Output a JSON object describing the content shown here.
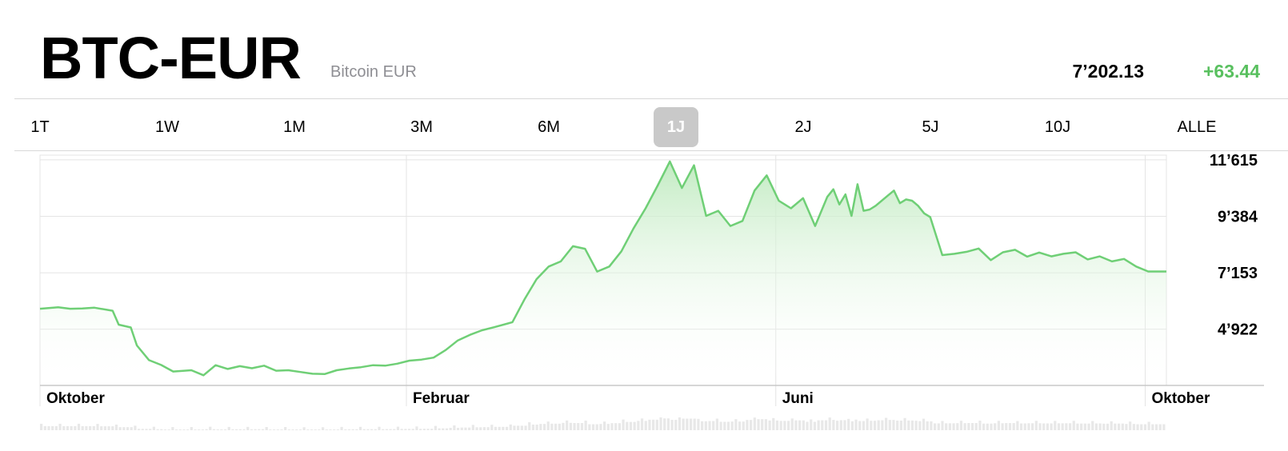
{
  "header": {
    "symbol": "BTC-EUR",
    "name": "Bitcoin EUR",
    "price": "7’202.13",
    "change": "+63.44"
  },
  "ranges": [
    {
      "label": "1T",
      "active": false
    },
    {
      "label": "1W",
      "active": false
    },
    {
      "label": "1M",
      "active": false
    },
    {
      "label": "3M",
      "active": false
    },
    {
      "label": "6M",
      "active": false
    },
    {
      "label": "1J",
      "active": true
    },
    {
      "label": "2J",
      "active": false
    },
    {
      "label": "5J",
      "active": false
    },
    {
      "label": "10J",
      "active": false
    },
    {
      "label": "ALLE",
      "active": false
    }
  ],
  "colors": {
    "line": "#6fcf76",
    "fill": "#e3f6e2",
    "positive": "#59c05f"
  },
  "chart_data": {
    "type": "area",
    "title": "",
    "xlabel": "",
    "ylabel": "",
    "y_ticks": [
      4922,
      7153,
      9384,
      11615
    ],
    "y_tick_labels": [
      "4’922",
      "7’153",
      "9’384",
      "11’615"
    ],
    "ylim": [
      2700,
      11800
    ],
    "x_ticks": [
      {
        "label": "Oktober",
        "x": 0
      },
      {
        "label": "Februar",
        "x": 121
      },
      {
        "label": "Juni",
        "x": 243
      },
      {
        "label": "Oktober",
        "x": 365
      }
    ],
    "xlim": [
      0,
      372
    ],
    "series": [
      {
        "x": [
          0,
          6,
          10,
          14,
          18,
          24,
          26,
          30,
          32,
          36,
          40,
          44,
          50,
          54,
          58,
          62,
          66,
          70,
          74,
          78,
          82,
          86,
          90,
          94,
          98,
          102,
          106,
          110,
          114,
          118,
          122,
          126,
          130,
          134,
          138,
          142,
          146,
          150,
          156,
          160,
          164,
          168,
          172,
          176,
          180,
          184,
          188,
          192,
          196,
          200,
          204,
          208,
          212,
          216,
          220,
          224,
          228,
          232,
          236,
          240,
          244,
          248,
          252,
          256,
          260,
          262,
          264,
          266,
          268,
          270,
          272,
          274,
          276,
          280,
          282,
          284,
          286,
          288,
          290,
          292,
          294,
          298,
          302,
          306,
          310,
          314,
          318,
          322,
          326,
          330,
          334,
          338,
          342,
          346,
          350,
          354,
          358,
          362,
          366,
          370,
          372
        ],
        "y": [
          5730,
          5790,
          5730,
          5740,
          5770,
          5650,
          5100,
          4990,
          4280,
          3700,
          3510,
          3250,
          3300,
          3100,
          3500,
          3350,
          3460,
          3380,
          3480,
          3280,
          3300,
          3230,
          3160,
          3150,
          3300,
          3370,
          3420,
          3500,
          3480,
          3560,
          3680,
          3720,
          3800,
          4100,
          4480,
          4700,
          4880,
          5000,
          5200,
          6100,
          6900,
          7400,
          7600,
          8200,
          8100,
          7200,
          7400,
          8000,
          8900,
          9700,
          10600,
          11550,
          10500,
          11400,
          9400,
          9600,
          9000,
          9200,
          10400,
          11000,
          10000,
          9700,
          10100,
          9000,
          10150,
          10450,
          9850,
          10250,
          9400,
          10650,
          9600,
          9650,
          9800,
          10200,
          10400,
          9900,
          10050,
          10000,
          9800,
          9500,
          9350,
          7850,
          7900,
          7980,
          8110,
          7650,
          7960,
          8060,
          7790,
          7950,
          7800,
          7900,
          7960,
          7680,
          7800,
          7600,
          7700,
          7400,
          7202,
          7202,
          7202
        ]
      }
    ],
    "grid": true,
    "legend": "none"
  }
}
